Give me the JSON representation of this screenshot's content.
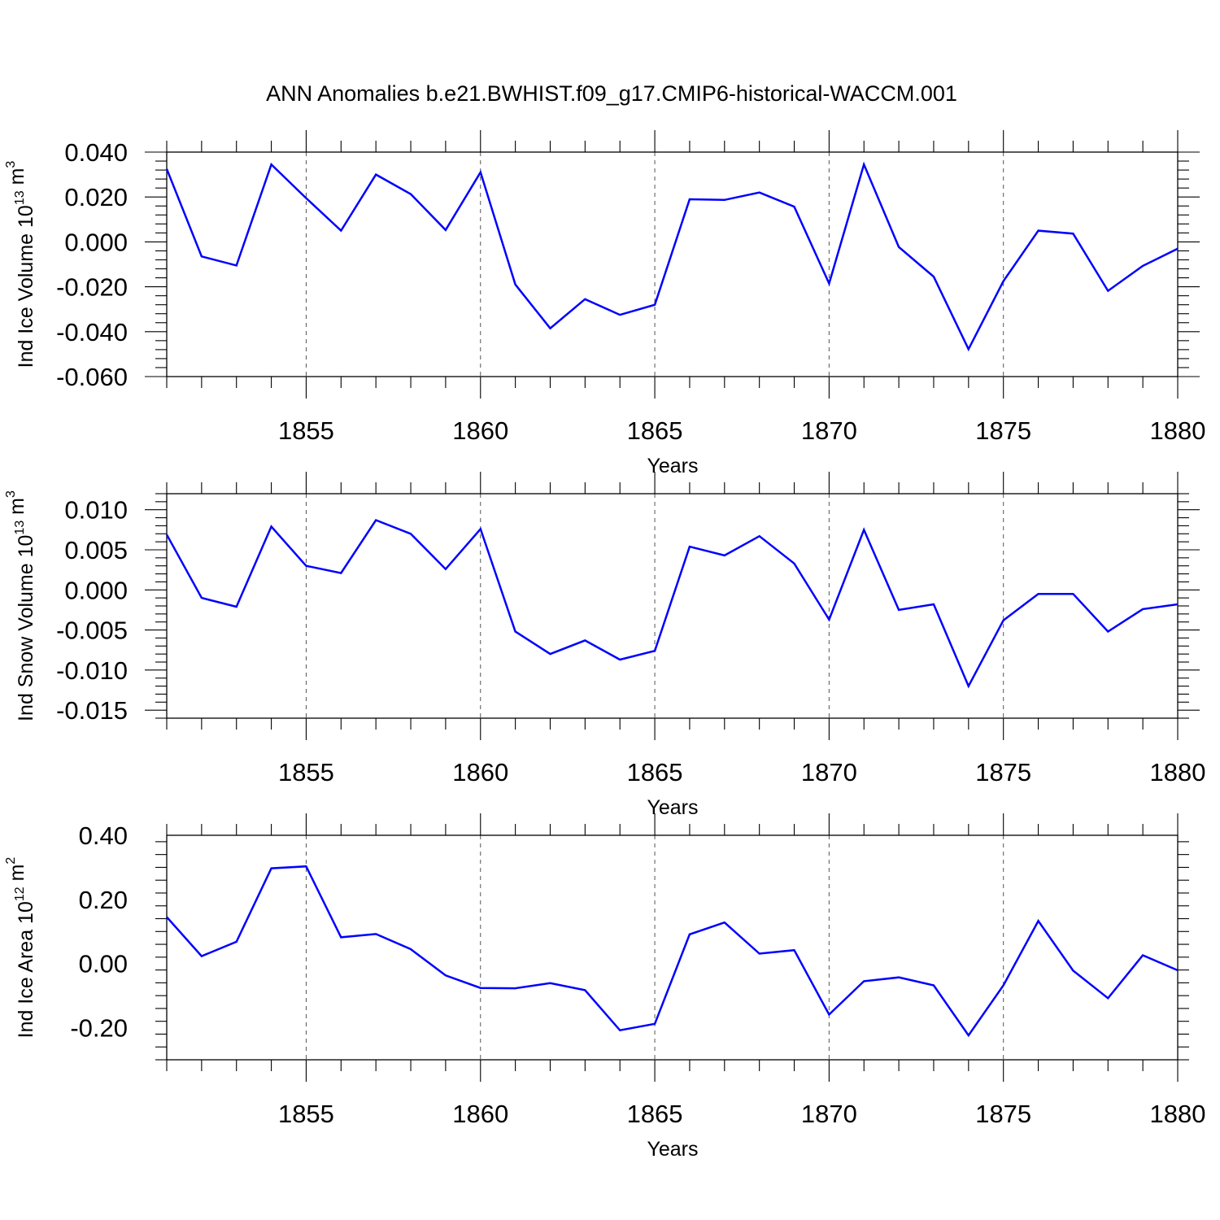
{
  "figure_title": "ANN Anomalies b.e21.BWHIST.f09_g17.CMIP6-historical-WACCM.001",
  "colors": {
    "series": "#0000ff",
    "axis": "#000000",
    "grid": "#555555"
  },
  "chart_data": [
    {
      "type": "line",
      "xlabel": "Years",
      "ylabel": {
        "prefix": "Ind Ice Volume 10",
        "exponent": "13",
        "unit": " m",
        "unit_exponent": "3"
      },
      "xlim": [
        1851,
        1880
      ],
      "ylim": [
        -0.06,
        0.04
      ],
      "xticks": [
        1855,
        1860,
        1865,
        1870,
        1875,
        1880
      ],
      "yticks": [
        -0.06,
        -0.04,
        -0.02,
        0.0,
        0.02,
        0.04
      ],
      "ytick_labels": [
        "-0.060",
        "-0.040",
        "-0.020",
        "0.000",
        "0.020",
        "0.040"
      ],
      "grid": "vertical dashed at major x ticks",
      "x": [
        1851,
        1852,
        1853,
        1854,
        1855,
        1856,
        1857,
        1858,
        1859,
        1860,
        1861,
        1862,
        1863,
        1864,
        1865,
        1866,
        1867,
        1868,
        1869,
        1870,
        1871,
        1872,
        1873,
        1874,
        1875,
        1876,
        1877,
        1878,
        1879,
        1880
      ],
      "values": [
        0.0325,
        -0.0065,
        -0.0105,
        0.0345,
        0.0195,
        0.005,
        0.03,
        0.0213,
        0.0053,
        0.031,
        -0.019,
        -0.0385,
        -0.0255,
        -0.0325,
        -0.028,
        0.019,
        0.0187,
        0.022,
        0.0157,
        -0.0185,
        0.0345,
        -0.0023,
        -0.0155,
        -0.0478,
        -0.0175,
        0.005,
        0.0037,
        -0.0218,
        -0.0107,
        -0.003
      ]
    },
    {
      "type": "line",
      "xlabel": "Years",
      "ylabel": {
        "prefix": "Ind Snow Volume 10",
        "exponent": "13",
        "unit": " m",
        "unit_exponent": "3"
      },
      "xlim": [
        1851,
        1880
      ],
      "ylim": [
        -0.016,
        0.012
      ],
      "xticks": [
        1855,
        1860,
        1865,
        1870,
        1875,
        1880
      ],
      "yticks": [
        -0.015,
        -0.01,
        -0.005,
        0.0,
        0.005,
        0.01
      ],
      "ytick_labels": [
        "-0.015",
        "-0.010",
        "-0.005",
        "0.000",
        "0.005",
        "0.010"
      ],
      "grid": "vertical dashed at major x ticks",
      "x": [
        1851,
        1852,
        1853,
        1854,
        1855,
        1856,
        1857,
        1858,
        1859,
        1860,
        1861,
        1862,
        1863,
        1864,
        1865,
        1866,
        1867,
        1868,
        1869,
        1870,
        1871,
        1872,
        1873,
        1874,
        1875,
        1876,
        1877,
        1878,
        1879,
        1880
      ],
      "values": [
        0.0069,
        -0.001,
        -0.0021,
        0.0079,
        0.003,
        0.0021,
        0.0087,
        0.007,
        0.0026,
        0.0076,
        -0.0052,
        -0.008,
        -0.0063,
        -0.0087,
        -0.0076,
        0.0054,
        0.0043,
        0.0067,
        0.0033,
        -0.0037,
        0.0075,
        -0.0025,
        -0.0018,
        -0.012,
        -0.0038,
        -0.0005,
        -0.0005,
        -0.0052,
        -0.0024,
        -0.0018
      ]
    },
    {
      "type": "line",
      "xlabel": "Years",
      "ylabel": {
        "prefix": "Ind Ice Area 10",
        "exponent": "12",
        "unit": " m",
        "unit_exponent": "2"
      },
      "xlim": [
        1851,
        1880
      ],
      "ylim": [
        -0.3,
        0.4
      ],
      "xticks": [
        1855,
        1860,
        1865,
        1870,
        1875,
        1880
      ],
      "yticks": [
        -0.2,
        0.0,
        0.2,
        0.4
      ],
      "ytick_labels": [
        "-0.20",
        "0.00",
        "0.20",
        "0.40"
      ],
      "grid": "vertical dashed at major x ticks",
      "x": [
        1851,
        1852,
        1853,
        1854,
        1855,
        1856,
        1857,
        1858,
        1859,
        1860,
        1861,
        1862,
        1863,
        1864,
        1865,
        1866,
        1867,
        1868,
        1869,
        1870,
        1871,
        1872,
        1873,
        1874,
        1875,
        1876,
        1877,
        1878,
        1879,
        1880
      ],
      "values": [
        0.145,
        0.023,
        0.068,
        0.297,
        0.303,
        0.082,
        0.092,
        0.045,
        -0.037,
        -0.076,
        -0.077,
        -0.061,
        -0.083,
        -0.208,
        -0.188,
        0.091,
        0.128,
        0.031,
        0.042,
        -0.159,
        -0.055,
        -0.043,
        -0.068,
        -0.224,
        -0.068,
        0.133,
        -0.022,
        -0.108,
        0.026,
        -0.021
      ]
    }
  ]
}
